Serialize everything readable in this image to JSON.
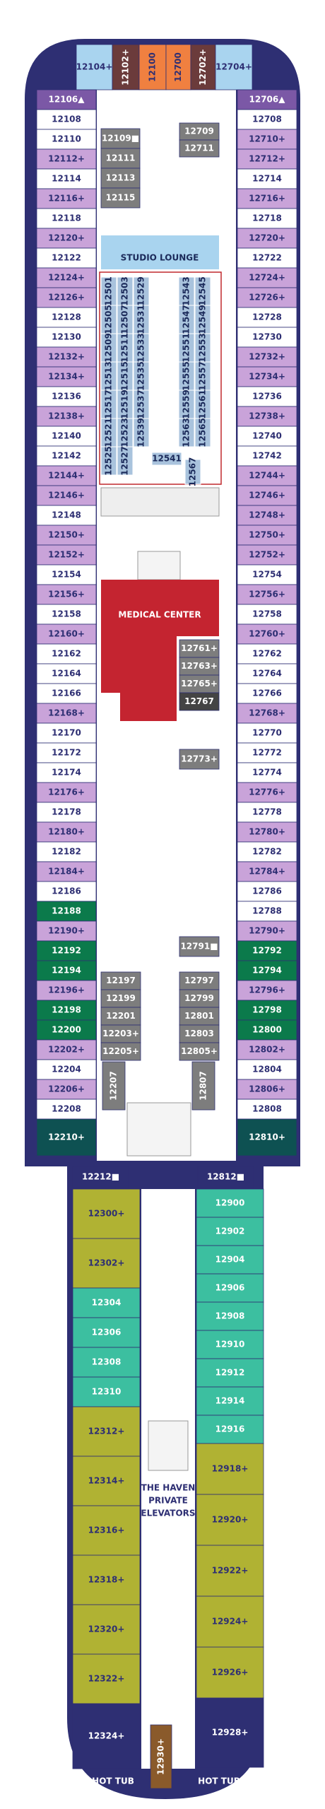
{
  "forward": [
    {
      "label": "12104+",
      "color": "#a9d4ef"
    },
    {
      "label": "12102+",
      "color": "#6b3b3b"
    },
    {
      "label": "12100",
      "color": "#f08040"
    },
    {
      "label": "12700",
      "color": "#f08040"
    },
    {
      "label": "12702+",
      "color": "#6b3b3b"
    },
    {
      "label": "12704+",
      "color": "#a9d4ef"
    }
  ],
  "port": [
    {
      "label": "12106▲",
      "color": "#7b58a6"
    },
    {
      "label": "12108",
      "color": "#ffffff"
    },
    {
      "label": "12110",
      "color": "#ffffff"
    },
    {
      "label": "12112+",
      "color": "#c9a3d9"
    },
    {
      "label": "12114",
      "color": "#ffffff"
    },
    {
      "label": "12116+",
      "color": "#c9a3d9"
    },
    {
      "label": "12118",
      "color": "#ffffff"
    },
    {
      "label": "12120+",
      "color": "#c9a3d9"
    },
    {
      "label": "12122",
      "color": "#ffffff"
    },
    {
      "label": "12124+",
      "color": "#c9a3d9"
    },
    {
      "label": "12126+",
      "color": "#c9a3d9"
    },
    {
      "label": "12128",
      "color": "#ffffff"
    },
    {
      "label": "12130",
      "color": "#ffffff"
    },
    {
      "label": "12132+",
      "color": "#c9a3d9"
    },
    {
      "label": "12134+",
      "color": "#c9a3d9"
    },
    {
      "label": "12136",
      "color": "#ffffff"
    },
    {
      "label": "12138+",
      "color": "#c9a3d9"
    },
    {
      "label": "12140",
      "color": "#ffffff"
    },
    {
      "label": "12142",
      "color": "#ffffff"
    },
    {
      "label": "12144+",
      "color": "#c9a3d9"
    },
    {
      "label": "12146+",
      "color": "#c9a3d9"
    },
    {
      "label": "12148",
      "color": "#ffffff"
    },
    {
      "label": "12150+",
      "color": "#c9a3d9"
    },
    {
      "label": "12152+",
      "color": "#c9a3d9"
    },
    {
      "label": "12154",
      "color": "#ffffff"
    },
    {
      "label": "12156+",
      "color": "#c9a3d9"
    },
    {
      "label": "12158",
      "color": "#ffffff"
    },
    {
      "label": "12160+",
      "color": "#c9a3d9"
    },
    {
      "label": "12162",
      "color": "#ffffff"
    },
    {
      "label": "12164",
      "color": "#ffffff"
    },
    {
      "label": "12166",
      "color": "#ffffff"
    },
    {
      "label": "12168+",
      "color": "#c9a3d9"
    },
    {
      "label": "12170",
      "color": "#ffffff"
    },
    {
      "label": "12172",
      "color": "#ffffff"
    },
    {
      "label": "12174",
      "color": "#ffffff"
    },
    {
      "label": "12176+",
      "color": "#c9a3d9"
    },
    {
      "label": "12178",
      "color": "#ffffff"
    },
    {
      "label": "12180+",
      "color": "#c9a3d9"
    },
    {
      "label": "12182",
      "color": "#ffffff"
    },
    {
      "label": "12184+",
      "color": "#c9a3d9"
    },
    {
      "label": "12186",
      "color": "#ffffff"
    },
    {
      "label": "12188",
      "color": "#0b7a4b"
    },
    {
      "label": "12190+",
      "color": "#c9a3d9"
    },
    {
      "label": "12192",
      "color": "#0b7a4b"
    },
    {
      "label": "12194",
      "color": "#0b7a4b"
    },
    {
      "label": "12196+",
      "color": "#c9a3d9"
    },
    {
      "label": "12198",
      "color": "#0b7a4b"
    },
    {
      "label": "12200",
      "color": "#0b7a4b"
    },
    {
      "label": "12202+",
      "color": "#c9a3d9"
    },
    {
      "label": "12204",
      "color": "#ffffff"
    },
    {
      "label": "12206+",
      "color": "#c9a3d9"
    },
    {
      "label": "12208",
      "color": "#ffffff"
    },
    {
      "label": "12210+",
      "color": "#0e5152"
    }
  ],
  "starboard": [
    {
      "label": "12706▲",
      "color": "#7b58a6"
    },
    {
      "label": "12708",
      "color": "#ffffff"
    },
    {
      "label": "12710+",
      "color": "#c9a3d9"
    },
    {
      "label": "12712+",
      "color": "#c9a3d9"
    },
    {
      "label": "12714",
      "color": "#ffffff"
    },
    {
      "label": "12716+",
      "color": "#c9a3d9"
    },
    {
      "label": "12718",
      "color": "#ffffff"
    },
    {
      "label": "12720+",
      "color": "#c9a3d9"
    },
    {
      "label": "12722",
      "color": "#ffffff"
    },
    {
      "label": "12724+",
      "color": "#c9a3d9"
    },
    {
      "label": "12726+",
      "color": "#c9a3d9"
    },
    {
      "label": "12728",
      "color": "#ffffff"
    },
    {
      "label": "12730",
      "color": "#ffffff"
    },
    {
      "label": "12732+",
      "color": "#c9a3d9"
    },
    {
      "label": "12734+",
      "color": "#c9a3d9"
    },
    {
      "label": "12736",
      "color": "#ffffff"
    },
    {
      "label": "12738+",
      "color": "#c9a3d9"
    },
    {
      "label": "12740",
      "color": "#ffffff"
    },
    {
      "label": "12742",
      "color": "#ffffff"
    },
    {
      "label": "12744+",
      "color": "#c9a3d9"
    },
    {
      "label": "12746+",
      "color": "#c9a3d9"
    },
    {
      "label": "12748+",
      "color": "#c9a3d9"
    },
    {
      "label": "12750+",
      "color": "#c9a3d9"
    },
    {
      "label": "12752+",
      "color": "#c9a3d9"
    },
    {
      "label": "12754",
      "color": "#ffffff"
    },
    {
      "label": "12756+",
      "color": "#c9a3d9"
    },
    {
      "label": "12758",
      "color": "#ffffff"
    },
    {
      "label": "12760+",
      "color": "#c9a3d9"
    },
    {
      "label": "12762",
      "color": "#ffffff"
    },
    {
      "label": "12764",
      "color": "#ffffff"
    },
    {
      "label": "12766",
      "color": "#ffffff"
    },
    {
      "label": "12768+",
      "color": "#c9a3d9"
    },
    {
      "label": "12770",
      "color": "#ffffff"
    },
    {
      "label": "12772",
      "color": "#ffffff"
    },
    {
      "label": "12774",
      "color": "#ffffff"
    },
    {
      "label": "12776+",
      "color": "#c9a3d9"
    },
    {
      "label": "12778",
      "color": "#ffffff"
    },
    {
      "label": "12780+",
      "color": "#c9a3d9"
    },
    {
      "label": "12782",
      "color": "#ffffff"
    },
    {
      "label": "12784+",
      "color": "#c9a3d9"
    },
    {
      "label": "12786",
      "color": "#ffffff"
    },
    {
      "label": "12788",
      "color": "#ffffff"
    },
    {
      "label": "12790+",
      "color": "#c9a3d9"
    },
    {
      "label": "12792",
      "color": "#0b7a4b"
    },
    {
      "label": "12794",
      "color": "#0b7a4b"
    },
    {
      "label": "12796+",
      "color": "#c9a3d9"
    },
    {
      "label": "12798",
      "color": "#0b7a4b"
    },
    {
      "label": "12800",
      "color": "#0b7a4b"
    },
    {
      "label": "12802+",
      "color": "#c9a3d9"
    },
    {
      "label": "12804",
      "color": "#ffffff"
    },
    {
      "label": "12806+",
      "color": "#c9a3d9"
    },
    {
      "label": "12808",
      "color": "#ffffff"
    },
    {
      "label": "12810+",
      "color": "#0e5152"
    }
  ],
  "interior": [
    {
      "label": "12709",
      "color": "#7d7d7d"
    },
    {
      "label": "12711",
      "color": "#7d7d7d"
    },
    {
      "label": "12109■",
      "color": "#7d7d7d"
    },
    {
      "label": "12111",
      "color": "#7d7d7d"
    },
    {
      "label": "12113",
      "color": "#7d7d7d"
    },
    {
      "label": "12115",
      "color": "#7d7d7d"
    },
    {
      "label": "12761+",
      "color": "#7d7d7d"
    },
    {
      "label": "12763+",
      "color": "#7d7d7d"
    },
    {
      "label": "12765+",
      "color": "#7d7d7d"
    },
    {
      "label": "12767",
      "color": "#444444"
    },
    {
      "label": "12773+",
      "color": "#7d7d7d"
    },
    {
      "label": "12791■",
      "color": "#7d7d7d"
    },
    {
      "label": "12797",
      "color": "#7d7d7d"
    },
    {
      "label": "12799",
      "color": "#7d7d7d"
    },
    {
      "label": "12801",
      "color": "#7d7d7d"
    },
    {
      "label": "12803",
      "color": "#7d7d7d"
    },
    {
      "label": "12805+",
      "color": "#7d7d7d"
    },
    {
      "label": "12807",
      "color": "#7d7d7d"
    },
    {
      "label": "12197",
      "color": "#7d7d7d"
    },
    {
      "label": "12199",
      "color": "#7d7d7d"
    },
    {
      "label": "12201",
      "color": "#7d7d7d"
    },
    {
      "label": "12203+",
      "color": "#7d7d7d"
    },
    {
      "label": "12205+",
      "color": "#7d7d7d"
    },
    {
      "label": "12207",
      "color": "#7d7d7d"
    },
    {
      "label": "12212■",
      "color": "#2e2f73"
    },
    {
      "label": "12812■",
      "color": "#2e2f73"
    }
  ],
  "studios": {
    "color": "#a9c3dd",
    "columns": [
      [
        "12501",
        "12505",
        "12509",
        "12513",
        "12517",
        "12521",
        "12525"
      ],
      [
        "12503",
        "12507",
        "12511",
        "12515",
        "12519",
        "12523",
        "12527"
      ],
      [
        "12529",
        "12531",
        "12533",
        "12535",
        "12537",
        "12539"
      ],
      [
        "12543",
        "12547",
        "12551",
        "12555",
        "12559",
        "12563"
      ],
      [
        "12545",
        "12549",
        "12553",
        "12557",
        "12561",
        "12565"
      ]
    ],
    "extra": [
      "12541",
      "12567"
    ]
  },
  "aft_port": [
    {
      "label": "12300+",
      "color": "#b0b233"
    },
    {
      "label": "12302+",
      "color": "#b0b233"
    },
    {
      "label": "12304",
      "color": "#3cbfa0"
    },
    {
      "label": "12306",
      "color": "#3cbfa0"
    },
    {
      "label": "12308",
      "color": "#3cbfa0"
    },
    {
      "label": "12310",
      "color": "#3cbfa0"
    },
    {
      "label": "12312+",
      "color": "#b0b233"
    },
    {
      "label": "12314+",
      "color": "#b0b233"
    },
    {
      "label": "12316+",
      "color": "#b0b233"
    },
    {
      "label": "12318+",
      "color": "#b0b233"
    },
    {
      "label": "12320+",
      "color": "#b0b233"
    },
    {
      "label": "12322+",
      "color": "#b0b233"
    },
    {
      "label": "12324+",
      "color": "#2e2f73"
    }
  ],
  "aft_starboard": [
    {
      "label": "12900",
      "color": "#3cbfa0"
    },
    {
      "label": "12902",
      "color": "#3cbfa0"
    },
    {
      "label": "12904",
      "color": "#3cbfa0"
    },
    {
      "label": "12906",
      "color": "#3cbfa0"
    },
    {
      "label": "12908",
      "color": "#3cbfa0"
    },
    {
      "label": "12910",
      "color": "#3cbfa0"
    },
    {
      "label": "12912",
      "color": "#3cbfa0"
    },
    {
      "label": "12914",
      "color": "#3cbfa0"
    },
    {
      "label": "12916",
      "color": "#3cbfa0"
    },
    {
      "label": "12918+",
      "color": "#b0b233"
    },
    {
      "label": "12920+",
      "color": "#b0b233"
    },
    {
      "label": "12922+",
      "color": "#b0b233"
    },
    {
      "label": "12924+",
      "color": "#b0b233"
    },
    {
      "label": "12926+",
      "color": "#b0b233"
    },
    {
      "label": "12928+",
      "color": "#2e2f73"
    }
  ],
  "aft_center": {
    "label": "12930+",
    "color": "#8a5a2b"
  },
  "places": {
    "studio_lounge": "STUDIO LOUNGE",
    "medical_center": "MEDICAL CENTER",
    "haven": [
      "THE HAVEN",
      "PRIVATE",
      "ELEVATORS"
    ],
    "hot_tub": [
      "HOT TUB",
      "HOT TUB"
    ]
  }
}
